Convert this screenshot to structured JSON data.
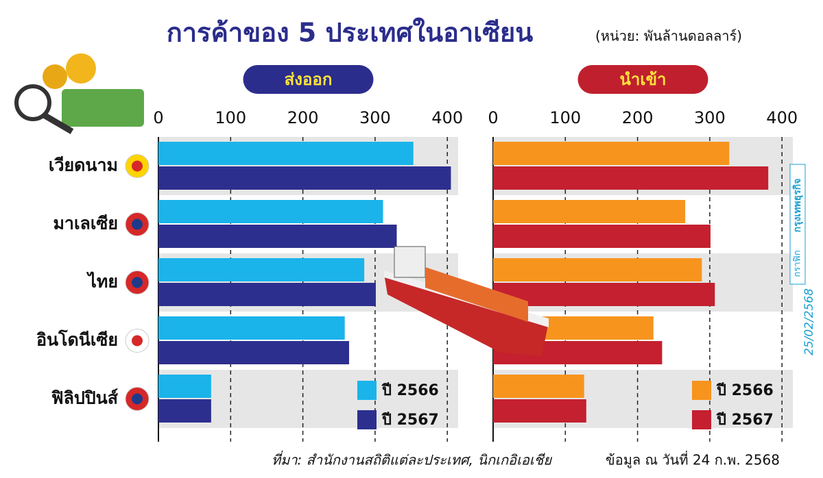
{
  "title": "การค้าของ 5 ประเทศในอาเซียน",
  "unit": "(หน่วย: พันล้านดอลลาร์)",
  "categories": [
    "เวียดนาม",
    "มาเลเซีย",
    "ไทย",
    "อินโดนีเซีย",
    "ฟิลิปปินส์"
  ],
  "chart_data": [
    {
      "type": "bar",
      "orientation": "horizontal",
      "title": "ส่งออก",
      "title_color": "#2b2d8c",
      "xlim": [
        0,
        415
      ],
      "xticks": [
        0,
        100,
        200,
        300,
        400
      ],
      "grid": true,
      "series": [
        {
          "name": "ปี 2566",
          "color": "#1ab4ea",
          "values": [
            353,
            311,
            285,
            258,
            73
          ]
        },
        {
          "name": "ปี 2567",
          "color": "#2d2f8f",
          "values": [
            405,
            330,
            301,
            264,
            73
          ]
        }
      ]
    },
    {
      "type": "bar",
      "orientation": "horizontal",
      "title": "นำเข้า",
      "title_color": "#c0202e",
      "xlim": [
        0,
        415
      ],
      "xticks": [
        0,
        100,
        200,
        300,
        400
      ],
      "grid": true,
      "series": [
        {
          "name": "ปี 2566",
          "color": "#f7941d",
          "values": [
            327,
            266,
            289,
            222,
            126
          ]
        },
        {
          "name": "ปี 2567",
          "color": "#c4202f",
          "values": [
            381,
            301,
            307,
            234,
            129
          ]
        }
      ]
    }
  ],
  "source": "ที่มา: สำนักงานสถิติแต่ละประเทศ, นิกเกอิเอเชีย",
  "note": "ข้อมูล ณ วันที่ 24 ก.พ. 2568",
  "credit": {
    "publisher": "กรุงเทพธุรกิจ",
    "section": "กราฟิก",
    "date": "25/02/2568"
  }
}
